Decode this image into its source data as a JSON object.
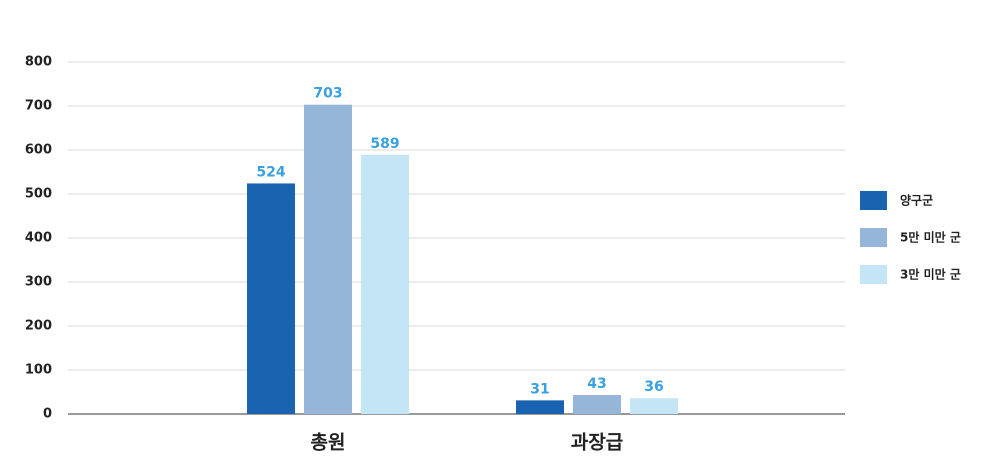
{
  "chart_data": {
    "type": "bar",
    "categories": [
      "총원",
      "과장급"
    ],
    "series": [
      {
        "name": "양구군",
        "color": "#1a63b0",
        "values": [
          524,
          31
        ]
      },
      {
        "name": "5만 미만 군",
        "color": "#95b5d9",
        "values": [
          703,
          43
        ]
      },
      {
        "name": "3만 미만 군",
        "color": "#c3e5f5",
        "values": [
          589,
          36
        ]
      }
    ],
    "ylim": [
      0,
      800
    ],
    "yticks": [
      0,
      100,
      200,
      300,
      400,
      500,
      600,
      700,
      800
    ],
    "grid": true,
    "legend": "right"
  }
}
